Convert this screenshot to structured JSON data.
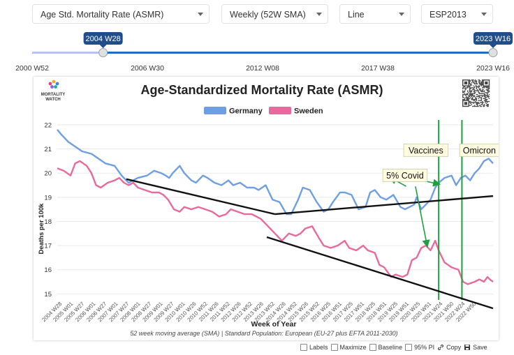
{
  "controls": {
    "metric": "Age Std. Mortality Rate (ASMR)",
    "period": "Weekly (52W SMA)",
    "chart_style": "Line",
    "standard": "ESP2013"
  },
  "slider": {
    "start_label": "2004 W28",
    "end_label": "2023 W16",
    "tick_labels": [
      "2000 W52",
      "2006 W30",
      "2012 W08",
      "2017 W38",
      "2023 W16"
    ],
    "range_start_fraction": 0.154,
    "range_end_fraction": 1.0
  },
  "footer": {
    "labels": "Labels",
    "maximize": "Maximize",
    "baseline": "Baseline",
    "pi": "95% PI",
    "copy": "Copy",
    "save": "Save"
  },
  "chart_data": {
    "type": "line",
    "title": "Age-Standardized Mortality Rate (ASMR)",
    "logo_text": [
      "MORTALITY",
      "WATCH"
    ],
    "subtitle": "52 week moving average (SMA) | Standard Population: European (EU-27 plus EFTA 2011-2030)",
    "xlabel": "Week of Year",
    "ylabel": "Deaths per 100k",
    "ylim": [
      14.75,
      22.2
    ],
    "yticks": [
      15,
      16,
      17,
      18,
      19,
      20,
      21,
      22
    ],
    "x_range": [
      2004.53,
      2023.29
    ],
    "xticks": [
      "2004 W28",
      "2005 W01",
      "2005 W27",
      "2006 W01",
      "2006 W27",
      "2007 W01",
      "2007 W27",
      "2008 W01",
      "2008 W27",
      "2009 W01",
      "2009 W27",
      "2010 W01",
      "2010 W26",
      "2010 W52",
      "2011 W26",
      "2011 W52",
      "2012 W26",
      "2012 W52",
      "2013 W26",
      "2013 W52",
      "2014 W26",
      "2014 W52",
      "2015 W26",
      "2015 W52",
      "2016 W25",
      "2016 W51",
      "2017 W25",
      "2017 W51",
      "2018 W25",
      "2018 W51",
      "2019 W25",
      "2019 W51",
      "2020 W25",
      "2020 W51",
      "2021 W24",
      "2021 W50",
      "2022 W24",
      "2022 W50"
    ],
    "legend": {
      "position": "top-center"
    },
    "series": [
      {
        "name": "Germany",
        "color": "#6f9fe3",
        "x": [
          2004.53,
          2004.7,
          2005.0,
          2005.3,
          2005.6,
          2006.0,
          2006.3,
          2006.6,
          2007.0,
          2007.3,
          2007.6,
          2008.0,
          2008.4,
          2008.7,
          2009.0,
          2009.2,
          2009.35,
          2009.5,
          2009.8,
          2010.0,
          2010.3,
          2010.5,
          2010.8,
          2011.0,
          2011.3,
          2011.6,
          2011.9,
          2012.1,
          2012.4,
          2012.7,
          2013.0,
          2013.2,
          2013.5,
          2013.8,
          2014.1,
          2014.4,
          2014.6,
          2014.9,
          2015.1,
          2015.4,
          2015.7,
          2016.0,
          2016.2,
          2016.4,
          2016.7,
          2016.9,
          2017.2,
          2017.5,
          2017.8,
          2018.0,
          2018.2,
          2018.45,
          2018.7,
          2019.0,
          2019.3,
          2019.5,
          2019.7,
          2019.9,
          2020.0,
          2020.2,
          2020.4,
          2020.6,
          2020.8,
          2020.95,
          2021.2,
          2021.5,
          2021.7,
          2021.9,
          2022.1,
          2022.3,
          2022.5,
          2022.7,
          2022.9,
          2023.1,
          2023.29
        ],
        "values": [
          21.8,
          21.6,
          21.3,
          21.1,
          20.9,
          20.8,
          20.6,
          20.4,
          20.3,
          19.9,
          19.6,
          19.8,
          19.9,
          20.1,
          20.0,
          19.9,
          19.8,
          20.0,
          20.3,
          20.0,
          19.7,
          19.6,
          19.9,
          19.8,
          19.6,
          19.5,
          19.7,
          19.5,
          19.6,
          19.4,
          19.4,
          19.3,
          19.5,
          18.9,
          18.8,
          18.3,
          18.3,
          18.9,
          19.4,
          19.3,
          18.8,
          18.4,
          18.5,
          18.8,
          19.2,
          19.2,
          19.1,
          18.5,
          18.6,
          19.2,
          19.3,
          19.0,
          18.9,
          19.1,
          18.6,
          18.5,
          18.6,
          18.7,
          19.0,
          18.5,
          18.7,
          18.9,
          19.4,
          19.6,
          19.8,
          19.9,
          19.5,
          19.8,
          19.9,
          19.7,
          20.0,
          20.2,
          20.5,
          20.6,
          20.4
        ]
      },
      {
        "name": "Sweden",
        "color": "#e86a9c",
        "x": [
          2004.53,
          2004.8,
          2005.1,
          2005.3,
          2005.5,
          2005.8,
          2006.0,
          2006.2,
          2006.4,
          2006.7,
          2007.0,
          2007.2,
          2007.4,
          2007.6,
          2007.8,
          2008.0,
          2008.3,
          2008.6,
          2008.9,
          2009.1,
          2009.3,
          2009.55,
          2009.8,
          2010.0,
          2010.3,
          2010.6,
          2010.9,
          2011.2,
          2011.5,
          2011.8,
          2012.0,
          2012.3,
          2012.6,
          2012.9,
          2013.1,
          2013.3,
          2013.5,
          2013.7,
          2014.0,
          2014.2,
          2014.5,
          2014.8,
          2015.0,
          2015.2,
          2015.5,
          2015.8,
          2016.0,
          2016.3,
          2016.6,
          2016.9,
          2017.1,
          2017.4,
          2017.7,
          2017.9,
          2018.2,
          2018.4,
          2018.6,
          2018.9,
          2019.1,
          2019.4,
          2019.6,
          2019.8,
          2020.0,
          2020.2,
          2020.4,
          2020.6,
          2020.8,
          2020.95,
          2021.2,
          2021.5,
          2021.8,
          2022.0,
          2022.2,
          2022.5,
          2022.7,
          2022.9,
          2023.05,
          2023.15,
          2023.29
        ],
        "values": [
          20.2,
          20.1,
          19.9,
          20.4,
          20.5,
          20.3,
          20.0,
          19.5,
          19.4,
          19.6,
          19.7,
          19.8,
          19.6,
          19.5,
          19.6,
          19.4,
          19.3,
          19.2,
          19.2,
          19.1,
          18.9,
          18.5,
          18.4,
          18.6,
          18.5,
          18.6,
          18.5,
          18.4,
          18.2,
          18.3,
          18.5,
          18.4,
          18.3,
          18.3,
          18.2,
          18.1,
          17.9,
          17.7,
          17.4,
          17.2,
          17.5,
          17.4,
          17.5,
          17.7,
          17.8,
          17.3,
          17.0,
          16.9,
          17.0,
          17.2,
          16.9,
          16.8,
          17.0,
          16.8,
          16.7,
          16.2,
          16.1,
          15.7,
          15.8,
          15.7,
          15.8,
          16.4,
          16.5,
          16.9,
          17.0,
          16.8,
          17.2,
          16.8,
          16.3,
          16.1,
          16.0,
          15.5,
          15.4,
          15.5,
          15.6,
          15.5,
          15.7,
          15.6,
          15.5
        ]
      }
    ],
    "annotations": {
      "trend_lines": [
        {
          "x": [
            2007.5,
            2013.9
          ],
          "y": [
            19.75,
            18.3
          ]
        },
        {
          "x": [
            2013.9,
            2023.29
          ],
          "y": [
            18.3,
            19.05
          ]
        },
        {
          "x": [
            2013.55,
            2023.29
          ],
          "y": [
            17.35,
            14.4
          ]
        }
      ],
      "vertical_lines": [
        {
          "x": 2020.95,
          "color": "#1ea040"
        },
        {
          "x": 2021.95,
          "color": "#1ea040"
        }
      ],
      "labels": [
        {
          "text": "Vaccines",
          "x": 2020.4,
          "y": 20.92
        },
        {
          "text": "Omicron",
          "x": 2022.7,
          "y": 20.92
        },
        {
          "text": "5% Covid",
          "x": 2019.5,
          "y": 19.88
        }
      ],
      "arrows": [
        {
          "from": [
            2020.2,
            19.7
          ],
          "to": [
            2020.95,
            19.55
          ]
        },
        {
          "from": [
            2019.95,
            19.45
          ],
          "to": [
            2020.45,
            17.0
          ]
        },
        {
          "from": [
            2019.55,
            19.45
          ],
          "to": [
            2018.9,
            19.8
          ]
        }
      ]
    }
  }
}
